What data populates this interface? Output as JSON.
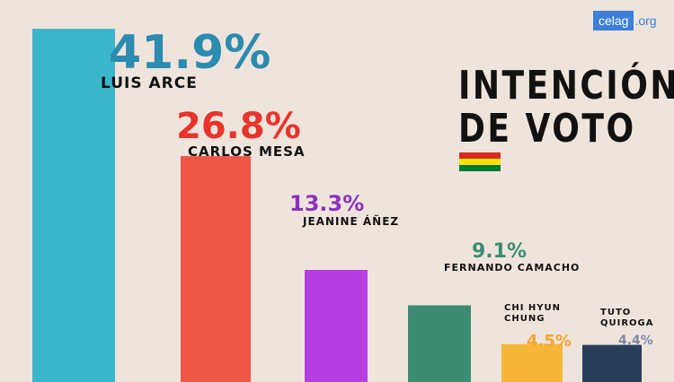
{
  "brand": {
    "logo_box": "celag",
    "logo_ext": ".org"
  },
  "title_lines": [
    "INTENCIÓN",
    "DE VOTO"
  ],
  "flag_colors": [
    "#d52b1e",
    "#f9e300",
    "#007a33"
  ],
  "chart_data": {
    "type": "bar",
    "title": "INTENCIÓN DE VOTO",
    "categories": [
      "LUIS ARCE",
      "CARLOS MESA",
      "JEANINE ÁÑEZ",
      "FERNANDO CAMACHO",
      "CHI HYUN CHUNG",
      "TUTO QUIROGA"
    ],
    "values": [
      41.9,
      26.8,
      13.3,
      9.1,
      4.5,
      4.4
    ],
    "value_labels": [
      "41.9%",
      "26.8%",
      "13.3%",
      "9.1%",
      "4.5%",
      "4.4%"
    ],
    "colors": [
      "#3ab5ca",
      "#ee5647",
      "#b63ee0",
      "#3c8c72",
      "#f5b536",
      "#293d5b"
    ],
    "value_label_colors": [
      "#2b8bb0",
      "#e8342c",
      "#8b32bf",
      "#3c8c72",
      "#f5a530",
      "#7b8aa8"
    ],
    "ylim": [
      0,
      45
    ],
    "grid": false,
    "legend": "none"
  }
}
